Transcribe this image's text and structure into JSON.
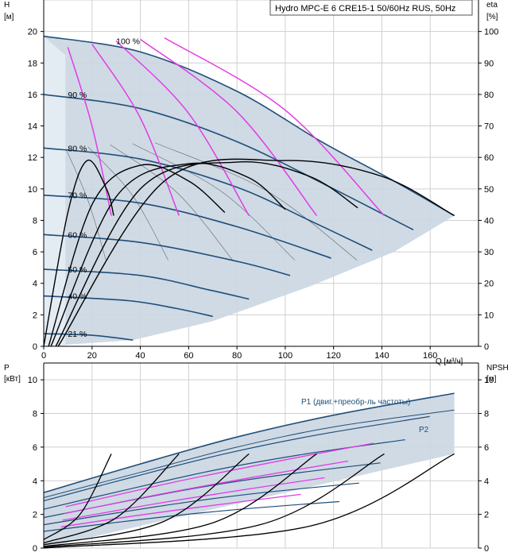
{
  "chart_data": [
    {
      "type": "line",
      "title": "Hydro MPC-E 6 CRE15-1 50/60Hz RUS, 50Hz",
      "xlabel": "Q [м³/ч]",
      "ylabel_left": "H",
      "ylabel_left_unit": "[м]",
      "ylabel_right": "eta",
      "ylabel_right_unit": "[%]",
      "xlim": [
        0,
        180
      ],
      "ylim": [
        0,
        22
      ],
      "ylim_right": [
        0,
        110
      ],
      "xticks": [
        0,
        20,
        40,
        60,
        80,
        100,
        120,
        140,
        160
      ],
      "yticks": [
        0,
        2,
        4,
        6,
        8,
        10,
        12,
        14,
        16,
        18,
        20
      ],
      "yticks_right": [
        0,
        10,
        20,
        30,
        40,
        50,
        60,
        70,
        80,
        90,
        100
      ],
      "grid": true,
      "speed_labels": [
        "100 %",
        "90 %",
        "80 %",
        "70 %",
        "60 %",
        "50 %",
        "40 %",
        "21 %"
      ],
      "speed_curves": [
        {
          "speed": 100,
          "x": [
            0,
            40,
            80,
            115,
            145,
            170
          ],
          "y": [
            19.7,
            18.7,
            16.2,
            13.0,
            10.5,
            8.3
          ]
        },
        {
          "speed": 90,
          "x": [
            0,
            40,
            80,
            120,
            153
          ],
          "y": [
            16.0,
            15.1,
            13.0,
            10.0,
            7.4
          ]
        },
        {
          "speed": 80,
          "x": [
            0,
            40,
            80,
            110,
            136
          ],
          "y": [
            12.6,
            11.9,
            10.1,
            8.0,
            6.1
          ]
        },
        {
          "speed": 70,
          "x": [
            0,
            40,
            80,
            119
          ],
          "y": [
            9.6,
            9.1,
            7.6,
            5.6
          ]
        },
        {
          "speed": 60,
          "x": [
            0,
            40,
            80,
            102
          ],
          "y": [
            7.1,
            6.6,
            5.4,
            4.5
          ]
        },
        {
          "speed": 50,
          "x": [
            0,
            40,
            68,
            85
          ],
          "y": [
            4.9,
            4.5,
            3.6,
            3.0
          ]
        },
        {
          "speed": 40,
          "x": [
            0,
            35,
            55,
            70
          ],
          "y": [
            3.2,
            2.9,
            2.4,
            1.9
          ]
        },
        {
          "speed": 21,
          "x": [
            0,
            20,
            37
          ],
          "y": [
            0.8,
            0.7,
            0.4
          ]
        }
      ],
      "pump_curves": [
        {
          "x": [
            10,
            20,
            28
          ],
          "y": [
            19.0,
            14.0,
            8.3
          ]
        },
        {
          "x": [
            20,
            40,
            56
          ],
          "y": [
            19.2,
            14.5,
            8.3
          ]
        },
        {
          "x": [
            30,
            60,
            85
          ],
          "y": [
            19.4,
            14.8,
            8.3
          ]
        },
        {
          "x": [
            40,
            80,
            113
          ],
          "y": [
            19.5,
            14.9,
            8.3
          ]
        },
        {
          "x": [
            50,
            100,
            141
          ],
          "y": [
            19.6,
            15.0,
            8.3
          ]
        }
      ],
      "efficiency_curves": [
        {
          "x": [
            0,
            10,
            18,
            26,
            29
          ],
          "y": [
            0,
            8.5,
            11.8,
            10.0,
            8.3
          ]
        },
        {
          "x": [
            2,
            20,
            40,
            60,
            75
          ],
          "y": [
            0,
            9.0,
            11.5,
            10.5,
            8.5
          ]
        },
        {
          "x": [
            3,
            30,
            60,
            85,
            100
          ],
          "y": [
            0,
            9.5,
            11.6,
            10.7,
            8.7
          ]
        },
        {
          "x": [
            5,
            40,
            80,
            110,
            130
          ],
          "y": [
            0,
            10.0,
            11.7,
            10.8,
            8.8
          ]
        },
        {
          "x": [
            6,
            50,
            100,
            140,
            170
          ],
          "y": [
            0,
            10.5,
            11.8,
            10.8,
            8.3
          ]
        }
      ]
    },
    {
      "type": "line",
      "ylabel_left": "P",
      "ylabel_left_unit": "[кВт]",
      "ylabel_right": "NPSH",
      "ylabel_right_unit": "[м]",
      "xlim": [
        0,
        180
      ],
      "ylim": [
        0,
        11
      ],
      "yticks": [
        0,
        2,
        4,
        6,
        8,
        10
      ],
      "grid": true,
      "series_labels": [
        "P1 (двиг.+преобр-ль частоты)",
        "P2"
      ],
      "p1_max": {
        "x": [
          0,
          40,
          80,
          120,
          170
        ],
        "y": [
          3.3,
          5.0,
          6.6,
          7.9,
          9.2
        ]
      },
      "p2_max": {
        "x": [
          0,
          40,
          80,
          120,
          170
        ],
        "y": [
          3.0,
          4.5,
          6.0,
          7.2,
          8.2
        ]
      },
      "npsh": [
        {
          "x": [
            0,
            15,
            28
          ],
          "y": [
            0.5,
            2.0,
            5.6
          ]
        },
        {
          "x": [
            0,
            30,
            56
          ],
          "y": [
            0.3,
            1.8,
            5.6
          ]
        },
        {
          "x": [
            0,
            50,
            85
          ],
          "y": [
            0.2,
            1.6,
            5.6
          ]
        },
        {
          "x": [
            0,
            70,
            113
          ],
          "y": [
            0.1,
            1.5,
            5.6
          ]
        },
        {
          "x": [
            0,
            90,
            141
          ],
          "y": [
            0.05,
            1.4,
            5.6
          ]
        },
        {
          "x": [
            0,
            110,
            170
          ],
          "y": [
            0.0,
            1.3,
            5.6
          ]
        }
      ]
    }
  ],
  "colors": {
    "grid": "#cfcfcf",
    "envelope": "#cad6e2",
    "envelope_light": "#e3ebf3",
    "speed_curve": "#1f4e79",
    "pump_curve": "#e23ce4",
    "efficiency": "#000000",
    "thin": "#666666",
    "label": "#1f4e79"
  }
}
